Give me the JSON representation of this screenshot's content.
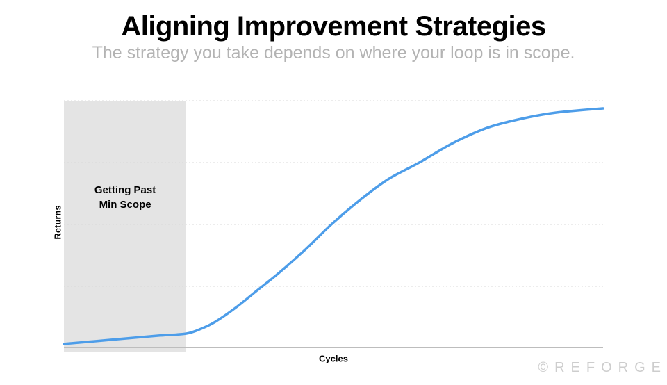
{
  "slide": {
    "title": "Aligning Improvement Strategies",
    "subtitle": "The strategy you take depends on where your loop is in scope.",
    "watermark": "©REFORGE"
  },
  "colors": {
    "title_black": "#000000",
    "subtitle_gray": "#B3B3B3",
    "curve_blue": "#4D9DE9",
    "shaded_region": "#E4E4E4",
    "gridline": "#D8D8D8",
    "axis_line": "#BDBDBD",
    "watermark_gray": "#CDCDCD"
  },
  "chart_data": {
    "type": "line",
    "title": "",
    "xlabel": "Cycles",
    "ylabel": "Returns",
    "xlim": [
      0,
      100
    ],
    "ylim": [
      0,
      100
    ],
    "grid": "horizontal-dashed",
    "gridline_values": [
      25,
      50,
      75,
      100
    ],
    "tick_labels_visible": false,
    "legend": "none",
    "x": [
      0,
      8.8,
      17.8,
      22.7,
      25.5,
      28.1,
      32.0,
      35.8,
      39.7,
      44.8,
      49.6,
      55.2,
      60.3,
      65.9,
      71.9,
      78.4,
      84.8,
      91.2,
      100
    ],
    "series": [
      {
        "name": "Returns",
        "values": [
          1.7,
          3.4,
          5.1,
          5.9,
          7.9,
          10.7,
          16.6,
          23.3,
          30.1,
          39.9,
          50.0,
          60.4,
          68.5,
          75.0,
          82.6,
          89.0,
          92.7,
          95.2,
          96.9
        ],
        "color": "#4D9DE9"
      }
    ],
    "shaded_region": {
      "label_line1": "Getting Past",
      "label_line2": "Min Scope",
      "x_start": 0,
      "x_end": 22.7,
      "color": "#E4E4E4"
    }
  }
}
